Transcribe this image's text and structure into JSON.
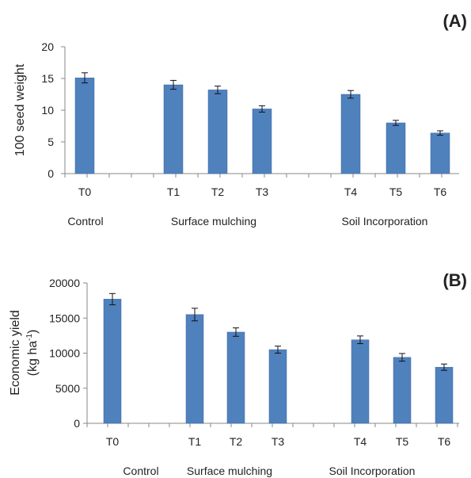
{
  "chart_data": [
    {
      "type": "bar",
      "panel": "(A)",
      "ylabel_lines": [
        "100 seed weight"
      ],
      "ylabel_sup": "",
      "categories": [
        "T0",
        "T1",
        "T2",
        "T3",
        "T4",
        "T5",
        "T6"
      ],
      "values": [
        15.1,
        14.0,
        13.2,
        10.2,
        12.5,
        8.0,
        6.4
      ],
      "errors": [
        0.8,
        0.7,
        0.6,
        0.5,
        0.6,
        0.4,
        0.35
      ],
      "yticks": [
        0,
        5,
        10,
        15,
        20
      ],
      "ylim": [
        0,
        20
      ],
      "groups": [
        "Control",
        "Surface mulching",
        "Soil Incorporation"
      ],
      "bar_color": "#4f81bd",
      "grid": false
    },
    {
      "type": "bar",
      "panel": "(B)",
      "ylabel_lines": [
        "Economic yield",
        "(kg ha"
      ],
      "ylabel_sup": "-1",
      "categories": [
        "T0",
        "T1",
        "T2",
        "T3",
        "T4",
        "T5",
        "T6"
      ],
      "values": [
        17700,
        15500,
        13000,
        10500,
        11900,
        9400,
        8000
      ],
      "errors": [
        800,
        900,
        600,
        500,
        550,
        550,
        450
      ],
      "yticks": [
        0,
        5000,
        10000,
        15000,
        20000
      ],
      "ylim": [
        0,
        20000
      ],
      "groups": [
        "Control",
        "Surface mulching",
        "Soil Incorporation"
      ],
      "bar_color": "#4f81bd",
      "grid": false
    }
  ]
}
